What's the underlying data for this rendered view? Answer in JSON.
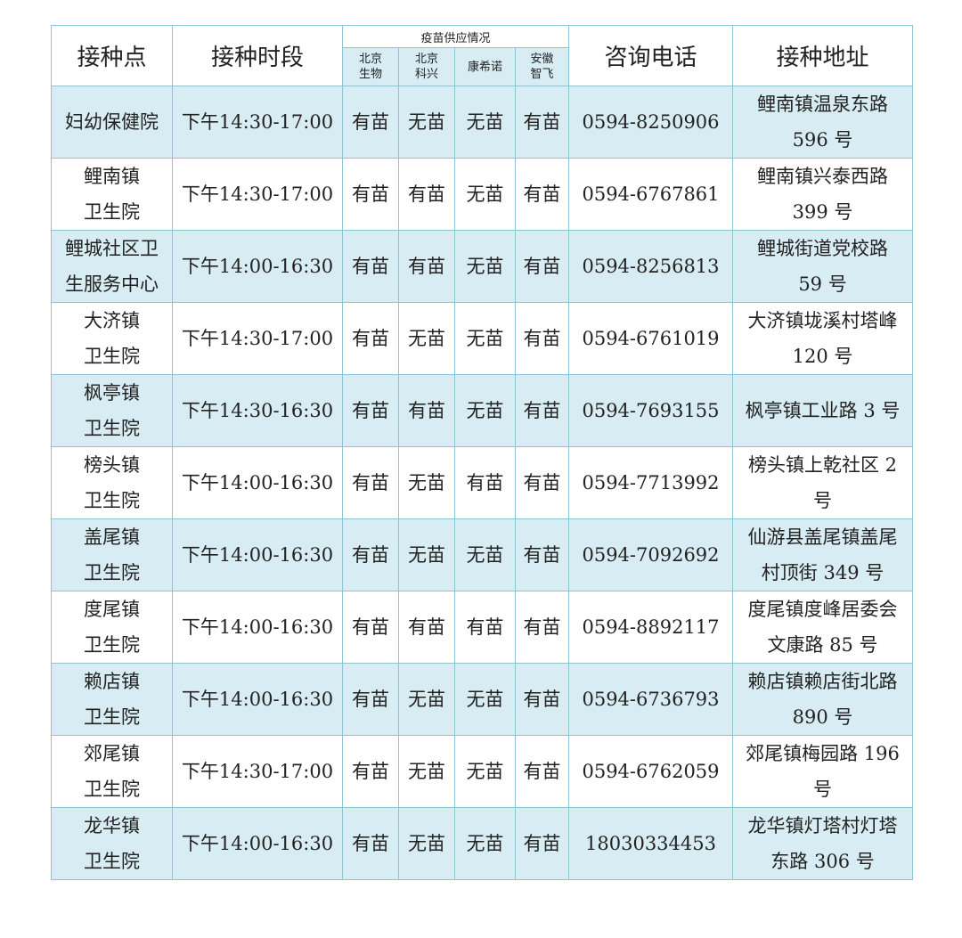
{
  "header": {
    "site": "接种点",
    "time": "接种时段",
    "supply": "疫苗供应情况",
    "vaccines": [
      [
        "北京",
        "生物"
      ],
      [
        "北京",
        "科兴"
      ],
      [
        "康希诺"
      ],
      [
        "安徽",
        "智飞"
      ]
    ],
    "phone": "咨询电话",
    "address": "接种地址"
  },
  "colors": {
    "border": "#8cc6d4",
    "row_highlight": "#d8ecf3"
  },
  "rows": [
    {
      "site": [
        "妇幼保健院"
      ],
      "time": "下午14:30-17:00",
      "supply": [
        "有苗",
        "无苗",
        "无苗",
        "有苗"
      ],
      "phone": "0594-8250906",
      "address": [
        "鲤南镇温泉东路",
        "596 号"
      ]
    },
    {
      "site": [
        "鲤南镇",
        "卫生院"
      ],
      "time": "下午14:30-17:00",
      "supply": [
        "有苗",
        "有苗",
        "无苗",
        "有苗"
      ],
      "phone": "0594-6767861",
      "address": [
        "鲤南镇兴泰西路",
        "399 号"
      ]
    },
    {
      "site": [
        "鲤城社区卫",
        "生服务中心"
      ],
      "time": "下午14:00-16:30",
      "supply": [
        "有苗",
        "有苗",
        "无苗",
        "有苗"
      ],
      "phone": "0594-8256813",
      "address": [
        "鲤城街道党校路",
        "59 号"
      ]
    },
    {
      "site": [
        "大济镇",
        "卫生院"
      ],
      "time": "下午14:30-17:00",
      "supply": [
        "有苗",
        "无苗",
        "无苗",
        "有苗"
      ],
      "phone": "0594-6761019",
      "address": [
        "大济镇垅溪村塔峰",
        "120 号"
      ]
    },
    {
      "site": [
        "枫亭镇",
        "卫生院"
      ],
      "time": "下午14:30-16:30",
      "supply": [
        "有苗",
        "有苗",
        "无苗",
        "有苗"
      ],
      "phone": "0594-7693155",
      "address": [
        "枫亭镇工业路 3 号"
      ]
    },
    {
      "site": [
        "榜头镇",
        "卫生院"
      ],
      "time": "下午14:00-16:30",
      "supply": [
        "有苗",
        "无苗",
        "有苗",
        "有苗"
      ],
      "phone": "0594-7713992",
      "address": [
        "榜头镇上乾社区 2",
        "号"
      ]
    },
    {
      "site": [
        "盖尾镇",
        "卫生院"
      ],
      "time": "下午14:00-16:30",
      "supply": [
        "有苗",
        "无苗",
        "无苗",
        "有苗"
      ],
      "phone": "0594-7092692",
      "address": [
        "仙游县盖尾镇盖尾",
        "村顶街 349 号"
      ]
    },
    {
      "site": [
        "度尾镇",
        "卫生院"
      ],
      "time": "下午14:00-16:30",
      "supply": [
        "有苗",
        "有苗",
        "有苗",
        "有苗"
      ],
      "phone": "0594-8892117",
      "address": [
        "度尾镇度峰居委会",
        "文康路 85 号"
      ]
    },
    {
      "site": [
        "赖店镇",
        "卫生院"
      ],
      "time": "下午14:00-16:30",
      "supply": [
        "有苗",
        "无苗",
        "无苗",
        "有苗"
      ],
      "phone": "0594-6736793",
      "address": [
        "赖店镇赖店街北路",
        "890 号"
      ]
    },
    {
      "site": [
        "郊尾镇",
        "卫生院"
      ],
      "time": "下午14:30-17:00",
      "supply": [
        "有苗",
        "无苗",
        "无苗",
        "有苗"
      ],
      "phone": "0594-6762059",
      "address": [
        "郊尾镇梅园路 196",
        "号"
      ]
    },
    {
      "site": [
        "龙华镇",
        "卫生院"
      ],
      "time": "下午14:00-16:30",
      "supply": [
        "有苗",
        "无苗",
        "无苗",
        "有苗"
      ],
      "phone": "18030334453",
      "address": [
        "龙华镇灯塔村灯塔",
        "东路 306 号"
      ]
    }
  ]
}
